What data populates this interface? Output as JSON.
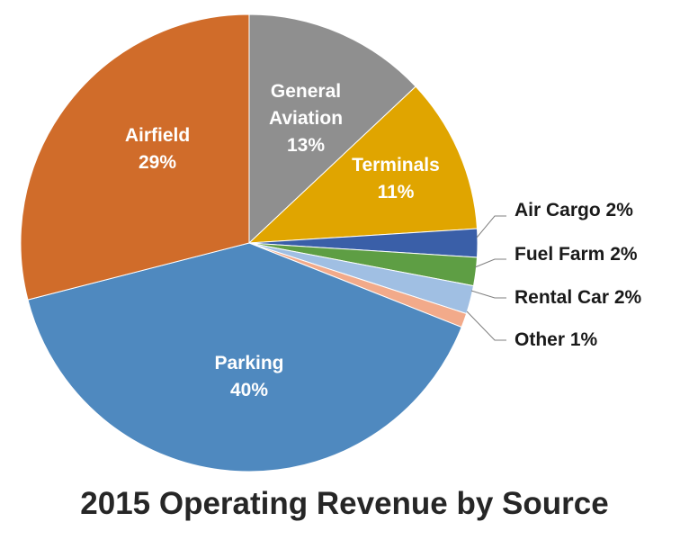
{
  "chart_data": {
    "type": "pie",
    "title": "2015 Operating Revenue by Source",
    "slices": [
      {
        "name": "General Aviation",
        "value": 13,
        "label_lines": [
          "General",
          "Aviation",
          "13%"
        ],
        "color": "#8f8f8f",
        "label": "inside"
      },
      {
        "name": "Terminals",
        "value": 11,
        "label_lines": [
          "Terminals",
          "11%"
        ],
        "color": "#e0a500",
        "label": "inside"
      },
      {
        "name": "Air Cargo",
        "value": 2,
        "label_lines": [
          "Air Cargo 2%"
        ],
        "color": "#3a5fa8",
        "label": "outside"
      },
      {
        "name": "Fuel Farm",
        "value": 2,
        "label_lines": [
          "Fuel Farm 2%"
        ],
        "color": "#5e9e44",
        "label": "outside"
      },
      {
        "name": "Rental Car",
        "value": 2,
        "label_lines": [
          "Rental Car 2%"
        ],
        "color": "#a0bfe3",
        "label": "outside"
      },
      {
        "name": "Other",
        "value": 1,
        "label_lines": [
          "Other 1%"
        ],
        "color": "#f2aa8a",
        "label": "outside"
      },
      {
        "name": "Parking",
        "value": 40,
        "label_lines": [
          "Parking",
          "40%"
        ],
        "color": "#4f89bf",
        "label": "inside"
      },
      {
        "name": "Airfield",
        "value": 29,
        "label_lines": [
          "Airfield",
          "29%"
        ],
        "color": "#d06c2a",
        "label": "inside"
      }
    ]
  }
}
